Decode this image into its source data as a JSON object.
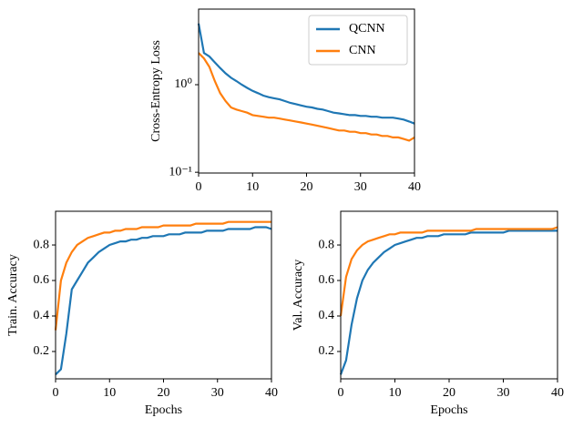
{
  "chart_data": [
    {
      "type": "line",
      "ylabel": "Cross-Entropy Loss",
      "log_y": true,
      "legend": "upper right",
      "x": [
        0,
        1,
        2,
        3,
        4,
        5,
        6,
        7,
        8,
        9,
        10,
        11,
        12,
        13,
        14,
        15,
        16,
        17,
        18,
        19,
        20,
        21,
        22,
        23,
        24,
        25,
        26,
        27,
        28,
        29,
        30,
        31,
        32,
        33,
        34,
        35,
        36,
        37,
        38,
        39,
        40
      ],
      "xlim": [
        0,
        40
      ],
      "xticks": [
        0,
        10,
        20,
        30,
        40
      ],
      "ylim": [
        0.098,
        7.3
      ],
      "yticks": [
        {
          "value": 1,
          "label": "10⁰"
        },
        {
          "value": 0.1,
          "label": "10⁻¹"
        }
      ],
      "series": [
        {
          "name": "QCNN",
          "color": "#1f77b4",
          "values": [
            5,
            2.3,
            2.1,
            1.8,
            1.55,
            1.35,
            1.2,
            1.1,
            1.0,
            0.92,
            0.85,
            0.8,
            0.75,
            0.72,
            0.7,
            0.68,
            0.65,
            0.62,
            0.6,
            0.58,
            0.56,
            0.55,
            0.53,
            0.52,
            0.5,
            0.48,
            0.47,
            0.46,
            0.45,
            0.45,
            0.44,
            0.44,
            0.43,
            0.43,
            0.42,
            0.42,
            0.42,
            0.41,
            0.4,
            0.38,
            0.36
          ]
        },
        {
          "name": "CNN",
          "color": "#ff7f0e",
          "values": [
            2.3,
            2.0,
            1.6,
            1.1,
            0.8,
            0.65,
            0.55,
            0.52,
            0.5,
            0.48,
            0.45,
            0.44,
            0.43,
            0.42,
            0.42,
            0.41,
            0.4,
            0.39,
            0.38,
            0.37,
            0.36,
            0.35,
            0.34,
            0.33,
            0.32,
            0.31,
            0.3,
            0.3,
            0.29,
            0.29,
            0.28,
            0.28,
            0.27,
            0.27,
            0.26,
            0.26,
            0.25,
            0.25,
            0.24,
            0.23,
            0.25
          ]
        }
      ]
    },
    {
      "type": "line",
      "ylabel": "Train. Accuracy",
      "xlabel": "Epochs",
      "x": [
        0,
        1,
        2,
        3,
        4,
        5,
        6,
        7,
        8,
        9,
        10,
        11,
        12,
        13,
        14,
        15,
        16,
        17,
        18,
        19,
        20,
        21,
        22,
        23,
        24,
        25,
        26,
        27,
        28,
        29,
        30,
        31,
        32,
        33,
        34,
        35,
        36,
        37,
        38,
        39,
        40
      ],
      "xlim": [
        0,
        40
      ],
      "xticks": [
        0,
        10,
        20,
        30,
        40
      ],
      "ylim": [
        0.046,
        0.99
      ],
      "yticks": [
        0.2,
        0.4,
        0.6,
        0.8
      ],
      "series": [
        {
          "color": "#1f77b4",
          "values": [
            0.07,
            0.1,
            0.3,
            0.55,
            0.6,
            0.65,
            0.7,
            0.73,
            0.76,
            0.78,
            0.8,
            0.81,
            0.82,
            0.82,
            0.83,
            0.83,
            0.84,
            0.84,
            0.85,
            0.85,
            0.85,
            0.86,
            0.86,
            0.86,
            0.87,
            0.87,
            0.87,
            0.87,
            0.88,
            0.88,
            0.88,
            0.88,
            0.89,
            0.89,
            0.89,
            0.89,
            0.89,
            0.9,
            0.9,
            0.9,
            0.89
          ]
        },
        {
          "color": "#ff7f0e",
          "values": [
            0.32,
            0.6,
            0.7,
            0.76,
            0.8,
            0.82,
            0.84,
            0.85,
            0.86,
            0.87,
            0.87,
            0.88,
            0.88,
            0.89,
            0.89,
            0.89,
            0.9,
            0.9,
            0.9,
            0.9,
            0.91,
            0.91,
            0.91,
            0.91,
            0.91,
            0.91,
            0.92,
            0.92,
            0.92,
            0.92,
            0.92,
            0.92,
            0.93,
            0.93,
            0.93,
            0.93,
            0.93,
            0.93,
            0.93,
            0.93,
            0.93
          ]
        }
      ]
    },
    {
      "type": "line",
      "ylabel": "Val. Accuracy",
      "xlabel": "Epochs",
      "x": [
        0,
        1,
        2,
        3,
        4,
        5,
        6,
        7,
        8,
        9,
        10,
        11,
        12,
        13,
        14,
        15,
        16,
        17,
        18,
        19,
        20,
        21,
        22,
        23,
        24,
        25,
        26,
        27,
        28,
        29,
        30,
        31,
        32,
        33,
        34,
        35,
        36,
        37,
        38,
        39,
        40
      ],
      "xlim": [
        0,
        40
      ],
      "xticks": [
        0,
        10,
        20,
        30,
        40
      ],
      "ylim": [
        0.046,
        0.99
      ],
      "yticks": [
        0.2,
        0.4,
        0.6,
        0.8
      ],
      "series": [
        {
          "color": "#1f77b4",
          "values": [
            0.07,
            0.15,
            0.35,
            0.5,
            0.6,
            0.66,
            0.7,
            0.73,
            0.76,
            0.78,
            0.8,
            0.81,
            0.82,
            0.83,
            0.84,
            0.84,
            0.85,
            0.85,
            0.85,
            0.86,
            0.86,
            0.86,
            0.86,
            0.86,
            0.87,
            0.87,
            0.87,
            0.87,
            0.87,
            0.87,
            0.87,
            0.88,
            0.88,
            0.88,
            0.88,
            0.88,
            0.88,
            0.88,
            0.88,
            0.88,
            0.88
          ]
        },
        {
          "color": "#ff7f0e",
          "values": [
            0.4,
            0.62,
            0.72,
            0.77,
            0.8,
            0.82,
            0.83,
            0.84,
            0.85,
            0.86,
            0.86,
            0.87,
            0.87,
            0.87,
            0.87,
            0.87,
            0.88,
            0.88,
            0.88,
            0.88,
            0.88,
            0.88,
            0.88,
            0.88,
            0.88,
            0.89,
            0.89,
            0.89,
            0.89,
            0.89,
            0.89,
            0.89,
            0.89,
            0.89,
            0.89,
            0.89,
            0.89,
            0.89,
            0.89,
            0.89,
            0.9
          ]
        }
      ]
    }
  ]
}
